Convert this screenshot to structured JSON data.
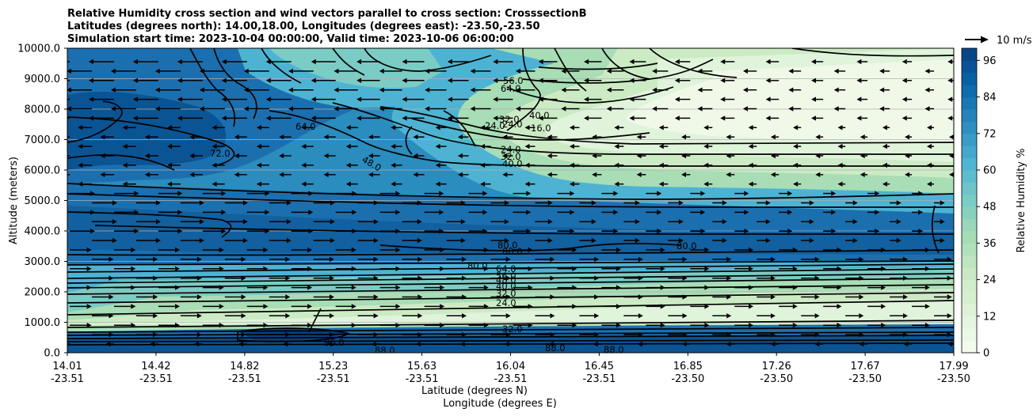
{
  "chart_data": {
    "type": "heatmap",
    "title_lines": [
      "Relative Humidity cross section and wind vectors parallel to cross section: CrosssectionB",
      "Latitudes (degrees north): 14.00,18.00, Longitudes (degrees east): -23.50,-23.50",
      "Simulation start time: 2023-10-04 00:00:00, Valid time: 2023-10-06 06:00:00"
    ],
    "ylabel": "Altitude (meters)",
    "xlabel": "Latitude (degrees N)",
    "xlabel2": "Longitude (degrees E)",
    "ylim": [
      0,
      10000
    ],
    "yticks": [
      "0.0",
      "1000.0",
      "2000.0",
      "3000.0",
      "4000.0",
      "5000.0",
      "6000.0",
      "7000.0",
      "8000.0",
      "9000.0",
      "10000.0"
    ],
    "xticks": [
      {
        "lat": "14.01",
        "lon": "-23.51"
      },
      {
        "lat": "14.42",
        "lon": "-23.51"
      },
      {
        "lat": "14.82",
        "lon": "-23.51"
      },
      {
        "lat": "15.23",
        "lon": "-23.51"
      },
      {
        "lat": "15.63",
        "lon": "-23.51"
      },
      {
        "lat": "16.04",
        "lon": "-23.51"
      },
      {
        "lat": "16.45",
        "lon": "-23.51"
      },
      {
        "lat": "16.85",
        "lon": "-23.50"
      },
      {
        "lat": "17.26",
        "lon": "-23.50"
      },
      {
        "lat": "17.67",
        "lon": "-23.50"
      },
      {
        "lat": "17.99",
        "lon": "-23.50"
      }
    ],
    "grid": "horizontal",
    "colorbar": {
      "label": "Relative Humidity %",
      "ticks": [
        "0",
        "12",
        "24",
        "36",
        "48",
        "60",
        "72",
        "84",
        "96"
      ],
      "range": [
        0,
        100
      ],
      "colormap": [
        "#f7fcf0",
        "#e0f3db",
        "#ccebc5",
        "#a8ddb5",
        "#7bccc4",
        "#4eb3d3",
        "#2b8cbe",
        "#0868ac",
        "#084081"
      ]
    },
    "quiver_key": {
      "label": "10 m/s",
      "speed": 10
    },
    "contour_labels": [
      "56.0",
      "64.0",
      "32.0",
      "24.0",
      "40.0",
      "16.0",
      "48.0",
      "72.0",
      "80.0",
      "88.0",
      "96.0",
      "24.0",
      "32.0",
      "40.0",
      "48.0",
      "80.0",
      "72.0",
      "88.0",
      "80.0",
      "80.0",
      "80.0",
      "64.0",
      "56.0",
      "48.0",
      "40.0",
      "32.0",
      "24.0",
      "32.0",
      "88.0",
      "96.0",
      "88.0",
      "88.0"
    ]
  }
}
